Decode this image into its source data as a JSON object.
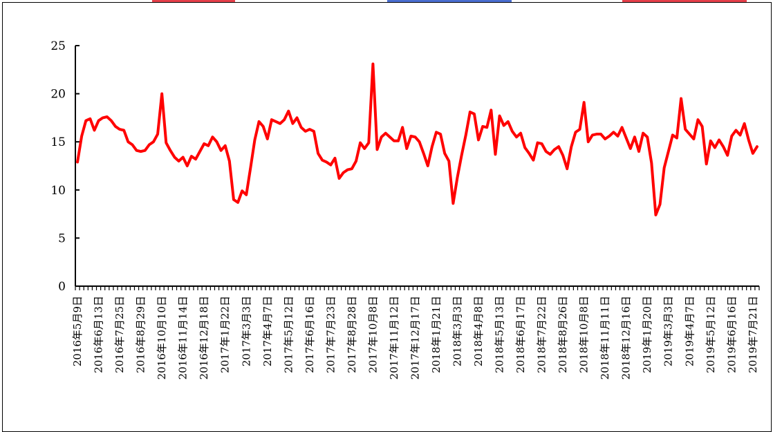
{
  "colors": {
    "line": "#ff0000",
    "axis": "#000000",
    "banner": "#e6404a"
  },
  "chart_data": {
    "type": "line",
    "title": "",
    "xlabel": "",
    "ylabel": "",
    "ylim": [
      0,
      25
    ],
    "yticks": [
      0,
      5,
      10,
      15,
      20,
      25
    ],
    "grid": false,
    "legend": "none",
    "xtick_labels": [
      "2016年5月9日",
      "2016年6月13日",
      "2016年7月25日",
      "2016年8月29日",
      "2016年10月10日",
      "2016年11月14日",
      "2016年12月18日",
      "2017年1月22日",
      "2017年3月3日",
      "2017年4月7日",
      "2017年5月12日",
      "2017年6月16日",
      "2017年7月23日",
      "2017年8月28日",
      "2017年10月8日",
      "2017年11月12日",
      "2017年12月17日",
      "2018年1月21日",
      "2018年3月3日",
      "2018年4月8日",
      "2018年5月13日",
      "2018年6月17日",
      "2018年7月22日",
      "2018年8月26日",
      "2018年10月8日",
      "2018年11月11日",
      "2018年12月16日",
      "2019年1月20日",
      "2019年3月3日",
      "2019年4月7日",
      "2019年5月12日",
      "2019年6月16日",
      "2019年7月21日"
    ],
    "series": [
      {
        "values": [
          12.9,
          15.6,
          17.2,
          17.4,
          16.2,
          17.2,
          17.5,
          17.6,
          17.2,
          16.6,
          16.3,
          16.2,
          15.0,
          14.7,
          14.1,
          14.0,
          14.1,
          14.7,
          15.0,
          15.8,
          20.0,
          14.9,
          14.1,
          13.4,
          13.0,
          13.4,
          12.5,
          13.5,
          13.2,
          14.0,
          14.8,
          14.6,
          15.5,
          15.0,
          14.1,
          14.6,
          13.0,
          9.0,
          8.7,
          9.9,
          9.5,
          12.3,
          15.2,
          17.1,
          16.6,
          15.3,
          17.3,
          17.1,
          16.9,
          17.3,
          18.2,
          16.9,
          17.5,
          16.5,
          16.1,
          16.3,
          16.1,
          13.8,
          13.1,
          12.9,
          12.6,
          13.3,
          11.2,
          11.8,
          12.1,
          12.2,
          13.0,
          14.9,
          14.3,
          14.9,
          23.1,
          14.2,
          15.5,
          15.9,
          15.5,
          15.1,
          15.1,
          16.5,
          14.3,
          15.6,
          15.5,
          15.0,
          13.8,
          12.5,
          14.5,
          16.0,
          15.8,
          13.8,
          13.0,
          8.6,
          11.3,
          13.6,
          15.7,
          18.1,
          17.9,
          15.2,
          16.6,
          16.5,
          18.3,
          13.7,
          17.7,
          16.7,
          17.1,
          16.1,
          15.5,
          15.9,
          14.4,
          13.8,
          13.1,
          14.9,
          14.8,
          14.0,
          13.7,
          14.2,
          14.5,
          13.6,
          12.2,
          14.5,
          16.0,
          16.3,
          19.1,
          15.0,
          15.7,
          15.8,
          15.8,
          15.3,
          15.6,
          16.0,
          15.6,
          16.5,
          15.4,
          14.3,
          15.5,
          14.0,
          15.9,
          15.5,
          12.8,
          7.4,
          8.5,
          12.3,
          14.0,
          15.7,
          15.4,
          19.5,
          16.3,
          15.8,
          15.3,
          17.3,
          16.6,
          12.7,
          15.1,
          14.4,
          15.2,
          14.5,
          13.6,
          15.6,
          16.2,
          15.7,
          16.9,
          15.2,
          13.8,
          14.5
        ]
      }
    ]
  }
}
